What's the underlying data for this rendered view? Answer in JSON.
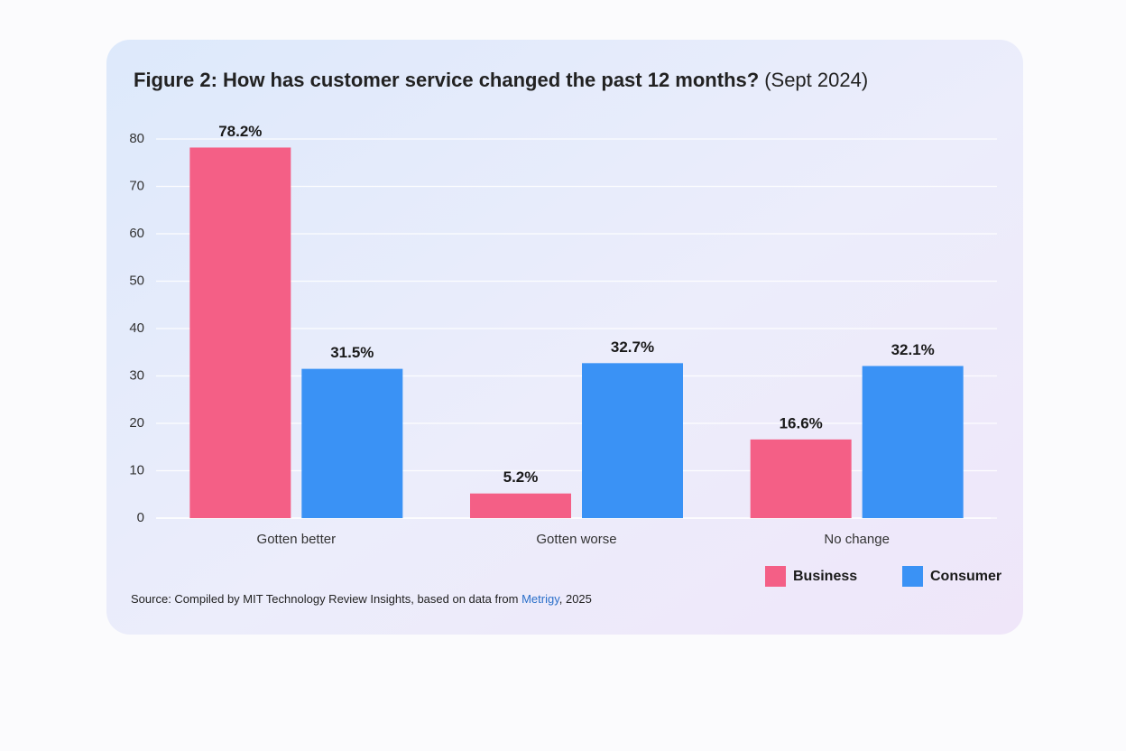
{
  "chart_data": {
    "type": "bar",
    "title": "Figure 2: How has customer service changed the past 12 months?",
    "subtitle": "(Sept 2024)",
    "categories": [
      "Gotten better",
      "Gotten worse",
      "No change"
    ],
    "series": [
      {
        "name": "Business",
        "color": "#f45f86",
        "values": [
          78.2,
          5.2,
          16.6
        ],
        "value_labels": [
          "78.2%",
          "5.2%",
          "16.6%"
        ]
      },
      {
        "name": "Consumer",
        "color": "#3a92f5",
        "values": [
          31.5,
          32.7,
          32.1
        ],
        "value_labels": [
          "31.5%",
          "32.7%",
          "32.1%"
        ]
      }
    ],
    "ylim": [
      0,
      80
    ],
    "yticks": [
      0,
      10,
      20,
      30,
      40,
      50,
      60,
      70,
      80
    ],
    "grid": true,
    "legend": "bottom-right",
    "source": {
      "prefix": "Source: Compiled by MIT Technology Review Insights, based on data from ",
      "link": "Metrigy",
      "suffix": ", 2025"
    }
  }
}
